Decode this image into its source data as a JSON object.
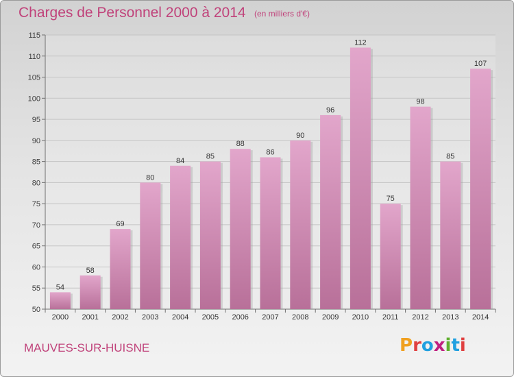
{
  "title": "Charges de Personnel 2000 à 2014",
  "subtitle": "(en milliers d'€)",
  "commune": "MAUVES-SUR-HUISNE",
  "logo": {
    "letters": [
      "P",
      "r",
      "o",
      "x",
      "i",
      "t",
      "i"
    ],
    "colors": [
      "#f0a020",
      "#e04040",
      "#20a0e0",
      "#c02080",
      "#60b030",
      "#20a0e0",
      "#e04040"
    ]
  },
  "colors": {
    "bar_top": "#e2a6cb",
    "bar_bottom": "#b87099",
    "accent": "#c0427a"
  },
  "chart_data": {
    "type": "bar",
    "title": "Charges de Personnel 2000 à 2014",
    "subtitle": "(en milliers d'€)",
    "categories": [
      "2000",
      "2001",
      "2002",
      "2003",
      "2004",
      "2005",
      "2006",
      "2007",
      "2008",
      "2009",
      "2010",
      "2011",
      "2012",
      "2013",
      "2014"
    ],
    "values": [
      54,
      58,
      69,
      80,
      84,
      85,
      88,
      86,
      90,
      96,
      112,
      75,
      98,
      85,
      107
    ],
    "ylim": [
      50,
      115
    ],
    "yticks": [
      50,
      55,
      60,
      65,
      70,
      75,
      80,
      85,
      90,
      95,
      100,
      105,
      110,
      115
    ],
    "grid": true,
    "xlabel": "",
    "ylabel": ""
  }
}
